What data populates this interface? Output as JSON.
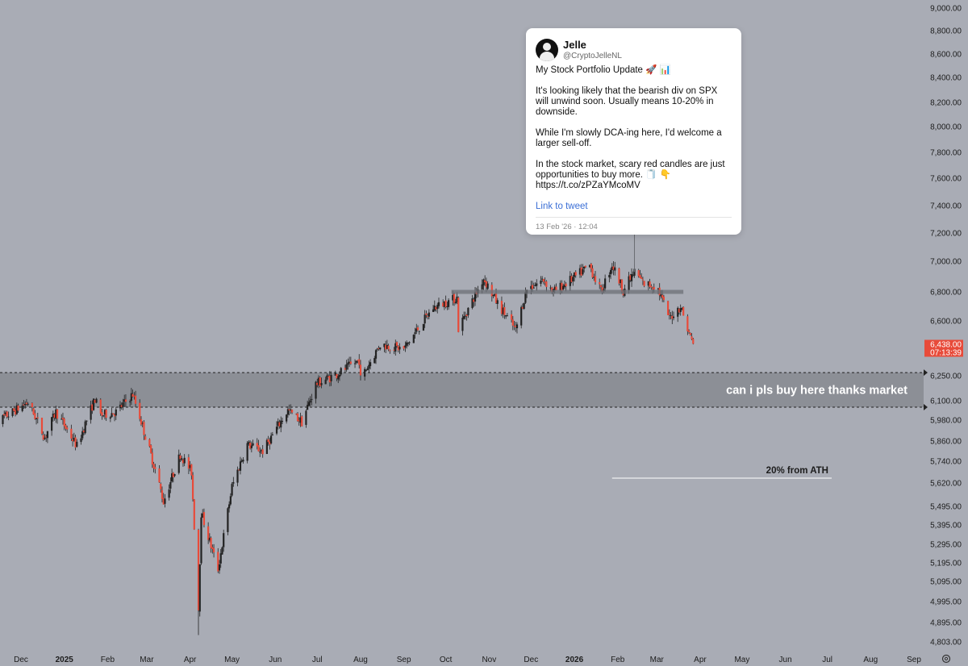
{
  "chart_data": {
    "type": "candlestick",
    "symbol": "SPX",
    "ylim": [
      4803,
      9000
    ],
    "y_ticks": [
      {
        "value": 9000,
        "label": "9,000.00"
      },
      {
        "value": 8800,
        "label": "8,800.00"
      },
      {
        "value": 8600,
        "label": "8,600.00"
      },
      {
        "value": 8400,
        "label": "8,400.00"
      },
      {
        "value": 8200,
        "label": "8,200.00"
      },
      {
        "value": 8000,
        "label": "8,000.00"
      },
      {
        "value": 7800,
        "label": "7,800.00"
      },
      {
        "value": 7600,
        "label": "7,600.00"
      },
      {
        "value": 7400,
        "label": "7,400.00"
      },
      {
        "value": 7200,
        "label": "7,200.00"
      },
      {
        "value": 7000,
        "label": "7,000.00"
      },
      {
        "value": 6800,
        "label": "6,800.00"
      },
      {
        "value": 6600,
        "label": "6,600.00"
      },
      {
        "value": 6250,
        "label": "6,250.00"
      },
      {
        "value": 6100,
        "label": "6,100.00"
      },
      {
        "value": 5980,
        "label": "5,980.00"
      },
      {
        "value": 5860,
        "label": "5,860.00"
      },
      {
        "value": 5740,
        "label": "5,740.00"
      },
      {
        "value": 5620,
        "label": "5,620.00"
      },
      {
        "value": 5495,
        "label": "5,495.00"
      },
      {
        "value": 5395,
        "label": "5,395.00"
      },
      {
        "value": 5295,
        "label": "5,295.00"
      },
      {
        "value": 5195,
        "label": "5,195.00"
      },
      {
        "value": 5095,
        "label": "5,095.00"
      },
      {
        "value": 4995,
        "label": "4,995.00"
      },
      {
        "value": 4895,
        "label": "4,895.00"
      },
      {
        "value": 4803,
        "label": "4,803.00"
      }
    ],
    "x_ticks": [
      {
        "date": "2024-12-01",
        "label": "Dec",
        "bold": false
      },
      {
        "date": "2025-01-01",
        "label": "2025",
        "bold": true
      },
      {
        "date": "2025-02-01",
        "label": "Feb",
        "bold": false
      },
      {
        "date": "2025-03-01",
        "label": "Mar",
        "bold": false
      },
      {
        "date": "2025-04-01",
        "label": "Apr",
        "bold": false
      },
      {
        "date": "2025-05-01",
        "label": "May",
        "bold": false
      },
      {
        "date": "2025-06-01",
        "label": "Jun",
        "bold": false
      },
      {
        "date": "2025-07-01",
        "label": "Jul",
        "bold": false
      },
      {
        "date": "2025-08-01",
        "label": "Aug",
        "bold": false
      },
      {
        "date": "2025-09-01",
        "label": "Sep",
        "bold": false
      },
      {
        "date": "2025-10-01",
        "label": "Oct",
        "bold": false
      },
      {
        "date": "2025-11-01",
        "label": "Nov",
        "bold": false
      },
      {
        "date": "2025-12-01",
        "label": "Dec",
        "bold": false
      },
      {
        "date": "2026-01-01",
        "label": "2026",
        "bold": true
      },
      {
        "date": "2026-02-01",
        "label": "Feb",
        "bold": false
      },
      {
        "date": "2026-03-01",
        "label": "Mar",
        "bold": false
      },
      {
        "date": "2026-04-01",
        "label": "Apr",
        "bold": false
      },
      {
        "date": "2026-05-01",
        "label": "May",
        "bold": false
      },
      {
        "date": "2026-06-01",
        "label": "Jun",
        "bold": false
      },
      {
        "date": "2026-07-01",
        "label": "Jul",
        "bold": false
      },
      {
        "date": "2026-08-01",
        "label": "Aug",
        "bold": false
      },
      {
        "date": "2026-09-01",
        "label": "Sep",
        "bold": false
      }
    ],
    "price_path": [
      [
        "2024-11-10",
        5950
      ],
      [
        "2024-11-25",
        6030
      ],
      [
        "2024-12-06",
        6090
      ],
      [
        "2024-12-18",
        5880
      ],
      [
        "2024-12-26",
        6030
      ],
      [
        "2025-01-10",
        5830
      ],
      [
        "2025-01-23",
        6110
      ],
      [
        "2025-01-27",
        6010
      ],
      [
        "2025-02-07",
        6030
      ],
      [
        "2025-02-19",
        6140
      ],
      [
        "2025-03-10",
        5610
      ],
      [
        "2025-03-13",
        5520
      ],
      [
        "2025-03-25",
        5780
      ],
      [
        "2025-04-02",
        5680
      ],
      [
        "2025-04-07",
        4960
      ],
      [
        "2025-04-09",
        5460
      ],
      [
        "2025-04-21",
        5160
      ],
      [
        "2025-05-01",
        5600
      ],
      [
        "2025-05-12",
        5840
      ],
      [
        "2025-05-23",
        5800
      ],
      [
        "2025-06-10",
        6040
      ],
      [
        "2025-06-20",
        5970
      ],
      [
        "2025-06-30",
        6200
      ],
      [
        "2025-07-15",
        6260
      ],
      [
        "2025-07-31",
        6350
      ],
      [
        "2025-08-01",
        6230
      ],
      [
        "2025-08-15",
        6450
      ],
      [
        "2025-09-01",
        6420
      ],
      [
        "2025-09-22",
        6690
      ],
      [
        "2025-10-09",
        6760
      ],
      [
        "2025-10-10",
        6550
      ],
      [
        "2025-10-28",
        6890
      ],
      [
        "2025-11-07",
        6720
      ],
      [
        "2025-11-20",
        6540
      ],
      [
        "2025-11-28",
        6820
      ],
      [
        "2025-12-10",
        6880
      ],
      [
        "2025-12-17",
        6800
      ],
      [
        "2026-01-02",
        6900
      ],
      [
        "2026-01-12",
        6970
      ],
      [
        "2026-01-20",
        6800
      ],
      [
        "2026-01-28",
        6980
      ],
      [
        "2026-02-05",
        6810
      ],
      [
        "2026-02-13",
        6930
      ],
      [
        "2026-02-20",
        6850
      ],
      [
        "2026-03-01",
        6840
      ],
      [
        "2026-03-10",
        6620
      ],
      [
        "2026-03-18",
        6700
      ],
      [
        "2026-03-24",
        6520
      ],
      [
        "2026-03-28",
        6438
      ]
    ],
    "extremes": {
      "low": {
        "date": "2025-04-07",
        "value": 4835
      },
      "ath": {
        "date": "2026-01-28",
        "value": 7010
      }
    },
    "current_price": {
      "label": "6,438.00",
      "countdown": "07:13:39",
      "color": "#e84b3a"
    },
    "zones": {
      "buy_zone": {
        "from": 6060,
        "to": 6270,
        "label": "can i pls buy here thanks market"
      },
      "support_line": {
        "value": 6800,
        "from_date": "2025-10-05",
        "to_date": "2026-03-20"
      },
      "ath_20_line": {
        "value": 5620,
        "from_date": "2026-01-28",
        "to_date": "2026-09-01",
        "label": "20% from ATH"
      }
    },
    "colors": {
      "background": "#a9acb5",
      "up": "#222222",
      "down": "#e84b3a",
      "zone": "#8c8f96",
      "text": "#1c1c1c"
    }
  },
  "tweet": {
    "name": "Jelle",
    "handle": "@CryptoJelleNL",
    "text": "My Stock Portfolio Update 🚀 📊\n\nIt's looking likely that the bearish div on SPX will unwind soon. Usually means 10-20% in downside.\n\nWhile I'm slowly DCA-ing here, I'd welcome a larger sell-off.\n\nIn the stock market, scary red candles are just opportunities to buy more. 🧻 👇\nhttps://t.co/zPZaYMcoMV",
    "link_label": "Link to tweet",
    "date": "13 Feb '26 · 12:04",
    "anchor_date": "2026-02-13"
  },
  "settings_icon": "gear-icon"
}
